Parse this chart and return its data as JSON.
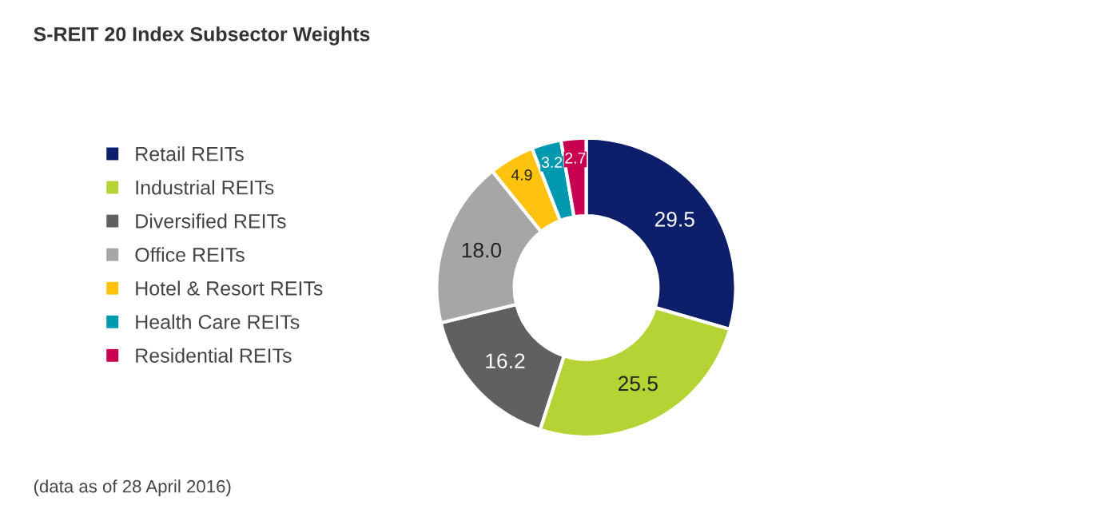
{
  "chart_data": {
    "type": "donut",
    "title": "S-REIT 20 Index Subsector Weights",
    "categories": [
      "Retail REITs",
      "Industrial REITs",
      "Diversified REITs",
      "Office REITs",
      "Hotel & Resort REITs",
      "Health Care REITs",
      "Residential REITs"
    ],
    "values": [
      29.5,
      25.5,
      16.2,
      18.0,
      4.9,
      3.2,
      2.7
    ],
    "colors": [
      "#0d1f6b",
      "#b5d334",
      "#5f6062",
      "#a6a6a6",
      "#ffc20e",
      "#0099b0",
      "#c8004f"
    ],
    "value_labels": [
      "29.5",
      "25.5",
      "16.2",
      "18.0",
      "4.9",
      "3.2",
      "2.7"
    ],
    "legend": "left",
    "annotations": [
      "(data as of 28 April 2016)"
    ]
  }
}
